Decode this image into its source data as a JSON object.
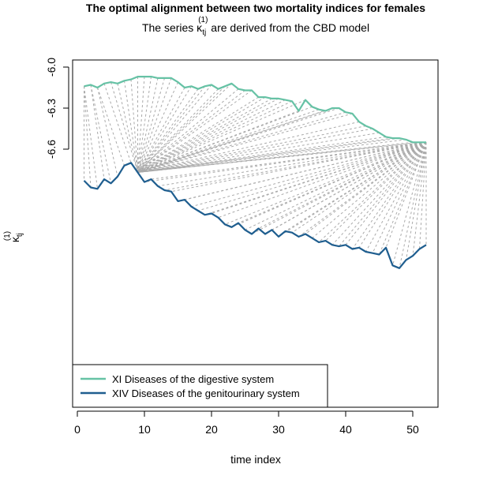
{
  "chart_data": {
    "type": "line",
    "title": "The optimal alignment between two mortality indices for females",
    "subtitle_prefix": "The series κ",
    "subtitle_sub": "tj",
    "subtitle_sup": "(1)",
    "subtitle_suffix": " are derived from the CBD model",
    "xlabel": "time index",
    "ylabel_symbol": "κ",
    "ylabel_sub": "tj",
    "ylabel_sup": "(1)",
    "xlim": [
      0,
      52
    ],
    "ylim": [
      -7.55,
      -5.95
    ],
    "xticks": [
      0,
      10,
      20,
      30,
      40,
      50
    ],
    "yticks": [
      -6.0,
      -6.3,
      -6.6
    ],
    "ytick_labels": [
      "-6.0",
      "-6.3",
      "-6.6"
    ],
    "grid": false,
    "legend_position": "bottom-left",
    "connector_color": "#aaaaaa",
    "series": [
      {
        "name": "XI Diseases of the digestive system",
        "color": "#66c2a5",
        "x": [
          1,
          2,
          3,
          4,
          5,
          6,
          7,
          8,
          9,
          10,
          11,
          12,
          13,
          14,
          15,
          16,
          17,
          18,
          19,
          20,
          21,
          22,
          23,
          24,
          25,
          26,
          27,
          28,
          29,
          30,
          31,
          32,
          33,
          34,
          35,
          36,
          37,
          38,
          39,
          40,
          41,
          42,
          43,
          44,
          45,
          46,
          47,
          48,
          49,
          50,
          51,
          52
        ],
        "y": [
          -6.14,
          -6.13,
          -6.15,
          -6.12,
          -6.11,
          -6.12,
          -6.1,
          -6.09,
          -6.07,
          -6.07,
          -6.07,
          -6.08,
          -6.08,
          -6.08,
          -6.11,
          -6.15,
          -6.14,
          -6.16,
          -6.14,
          -6.13,
          -6.16,
          -6.14,
          -6.12,
          -6.16,
          -6.17,
          -6.17,
          -6.22,
          -6.22,
          -6.23,
          -6.23,
          -6.24,
          -6.25,
          -6.32,
          -6.24,
          -6.29,
          -6.31,
          -6.32,
          -6.3,
          -6.3,
          -6.33,
          -6.34,
          -6.4,
          -6.43,
          -6.45,
          -6.48,
          -6.51,
          -6.52,
          -6.52,
          -6.53,
          -6.55,
          -6.55,
          -6.55
        ]
      },
      {
        "name": "XIV Diseases of the genitourinary system",
        "color": "#1f5e8f",
        "x": [
          1,
          2,
          3,
          4,
          5,
          6,
          7,
          8,
          9,
          10,
          11,
          12,
          13,
          14,
          15,
          16,
          17,
          18,
          19,
          20,
          21,
          22,
          23,
          24,
          25,
          26,
          27,
          28,
          29,
          30,
          31,
          32,
          33,
          34,
          35,
          36,
          37,
          38,
          39,
          40,
          41,
          42,
          43,
          44,
          45,
          46,
          47,
          48,
          49,
          50,
          51,
          52
        ],
        "y": [
          -6.83,
          -6.88,
          -6.89,
          -6.82,
          -6.85,
          -6.8,
          -6.72,
          -6.7,
          -6.77,
          -6.84,
          -6.82,
          -6.87,
          -6.9,
          -6.91,
          -6.98,
          -6.97,
          -7.02,
          -7.05,
          -7.08,
          -7.07,
          -7.1,
          -7.15,
          -7.17,
          -7.14,
          -7.19,
          -7.22,
          -7.18,
          -7.22,
          -7.19,
          -7.24,
          -7.2,
          -7.21,
          -7.24,
          -7.22,
          -7.25,
          -7.28,
          -7.27,
          -7.3,
          -7.31,
          -7.3,
          -7.33,
          -7.32,
          -7.35,
          -7.36,
          -7.37,
          -7.32,
          -7.45,
          -7.47,
          -7.41,
          -7.38,
          -7.33,
          -7.3
        ]
      }
    ],
    "alignment": [
      [
        1,
        1
      ],
      [
        1,
        2
      ],
      [
        1,
        3
      ],
      [
        2,
        4
      ],
      [
        2,
        5
      ],
      [
        3,
        6
      ],
      [
        3,
        7
      ],
      [
        4,
        8
      ],
      [
        5,
        9
      ],
      [
        6,
        9
      ],
      [
        7,
        9
      ],
      [
        8,
        9
      ],
      [
        9,
        9
      ],
      [
        10,
        9
      ],
      [
        11,
        9
      ],
      [
        12,
        9
      ],
      [
        13,
        9
      ],
      [
        14,
        9
      ],
      [
        15,
        9
      ],
      [
        16,
        9
      ],
      [
        17,
        9
      ],
      [
        18,
        9
      ],
      [
        19,
        9
      ],
      [
        20,
        9
      ],
      [
        21,
        9
      ],
      [
        22,
        9
      ],
      [
        23,
        9
      ],
      [
        24,
        9
      ],
      [
        25,
        9
      ],
      [
        26,
        9
      ],
      [
        27,
        9
      ],
      [
        28,
        9
      ],
      [
        29,
        9
      ],
      [
        30,
        9
      ],
      [
        31,
        9
      ],
      [
        32,
        9
      ],
      [
        33,
        9
      ],
      [
        34,
        9
      ],
      [
        35,
        9
      ],
      [
        36,
        9
      ],
      [
        37,
        9
      ],
      [
        38,
        9
      ],
      [
        39,
        9
      ],
      [
        40,
        9
      ],
      [
        41,
        9
      ],
      [
        42,
        9
      ],
      [
        43,
        9
      ],
      [
        44,
        9
      ],
      [
        45,
        9
      ],
      [
        46,
        9
      ],
      [
        47,
        9
      ],
      [
        48,
        9
      ],
      [
        49,
        9
      ],
      [
        50,
        9
      ],
      [
        51,
        9
      ],
      [
        52,
        9
      ],
      [
        52,
        10
      ],
      [
        52,
        11
      ],
      [
        52,
        12
      ],
      [
        52,
        13
      ],
      [
        52,
        14
      ],
      [
        52,
        15
      ],
      [
        52,
        16
      ],
      [
        52,
        17
      ],
      [
        52,
        18
      ],
      [
        52,
        19
      ],
      [
        52,
        20
      ],
      [
        52,
        21
      ],
      [
        52,
        22
      ],
      [
        52,
        23
      ],
      [
        52,
        24
      ],
      [
        52,
        25
      ],
      [
        52,
        26
      ],
      [
        52,
        27
      ],
      [
        52,
        28
      ],
      [
        52,
        29
      ],
      [
        52,
        30
      ],
      [
        52,
        31
      ],
      [
        52,
        32
      ],
      [
        52,
        33
      ],
      [
        52,
        34
      ],
      [
        52,
        35
      ],
      [
        52,
        36
      ],
      [
        52,
        37
      ],
      [
        52,
        38
      ],
      [
        52,
        39
      ],
      [
        52,
        40
      ],
      [
        52,
        41
      ],
      [
        52,
        42
      ],
      [
        52,
        43
      ],
      [
        52,
        44
      ],
      [
        52,
        45
      ],
      [
        52,
        46
      ],
      [
        52,
        47
      ],
      [
        52,
        48
      ],
      [
        52,
        49
      ],
      [
        52,
        50
      ],
      [
        52,
        51
      ],
      [
        52,
        52
      ]
    ]
  }
}
